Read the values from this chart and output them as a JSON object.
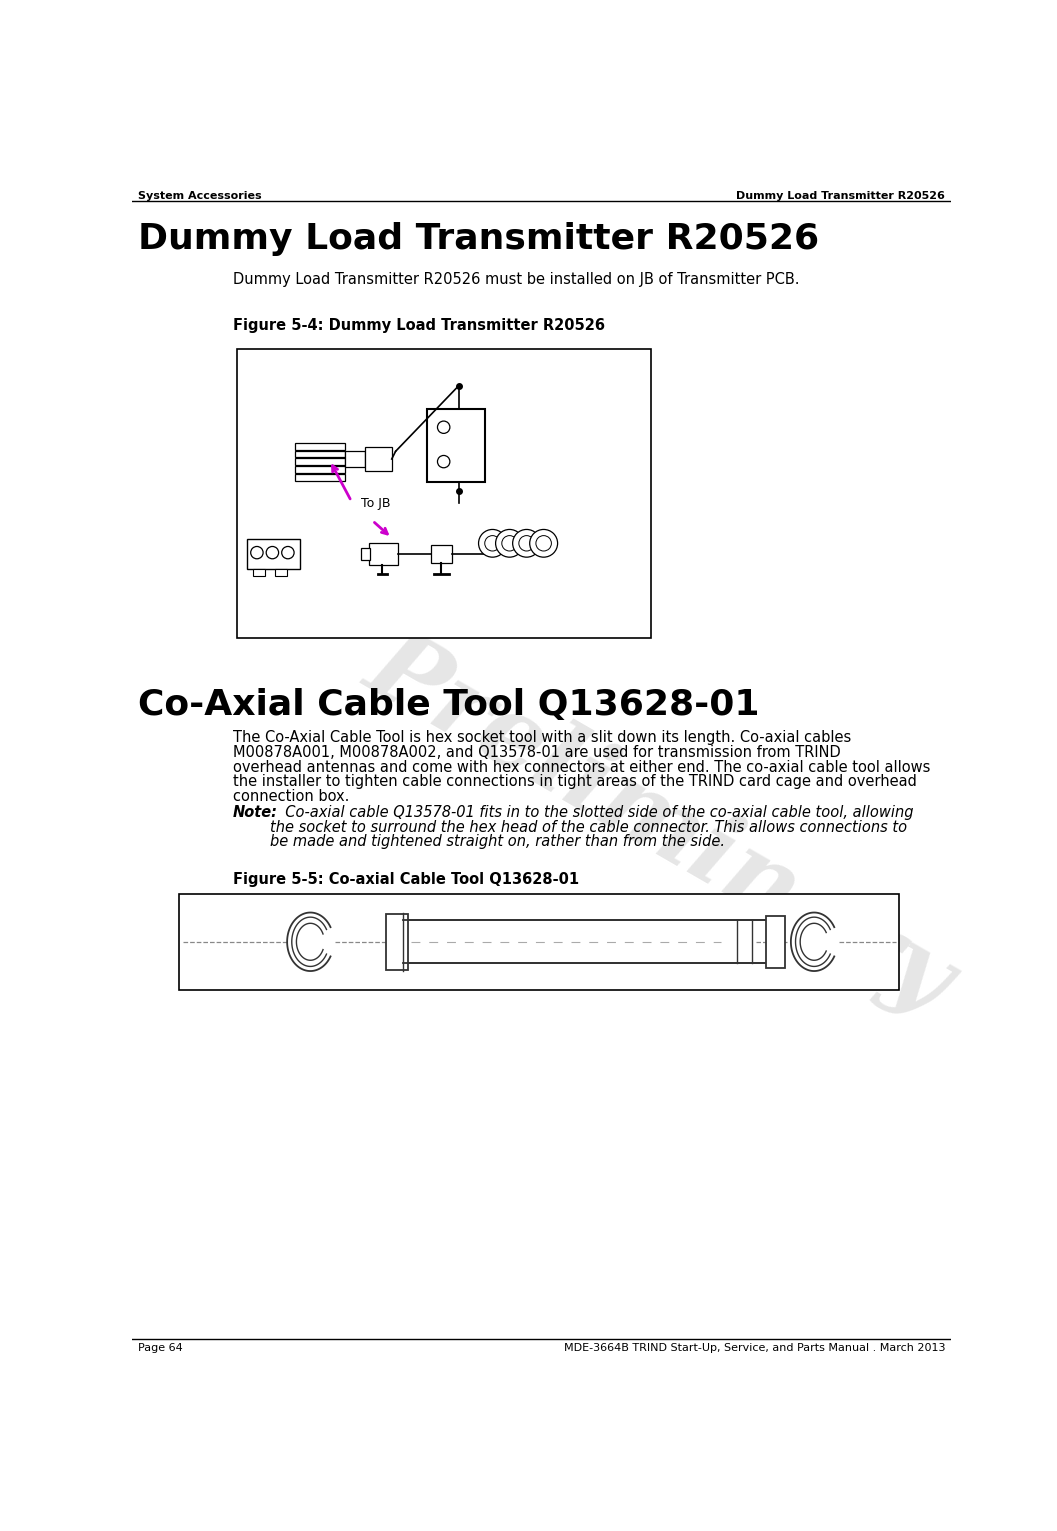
{
  "page_bg": "#ffffff",
  "header_left": "System Accessories",
  "header_right": "Dummy Load Transmitter R20526",
  "footer_left": "Page 64",
  "footer_right": "MDE-3664B TRIND Start-Up, Service, and Parts Manual . March 2013",
  "main_title": "Dummy Load Transmitter R20526",
  "body_text1": "Dummy Load Transmitter R20526 must be installed on JB of Transmitter PCB.",
  "fig1_caption": "Figure 5-4: Dummy Load Transmitter R20526",
  "fig1_note": "To JB",
  "section2_title": "Co-Axial Cable Tool Q13628-01",
  "body_text2_line1": "The Co-Axial Cable Tool is hex socket tool with a slit down its length. Co-axial cables",
  "body_text2_line2": "M00878A001, M00878A002, and Q13578-01 are used for transmission from TRIND",
  "body_text2_line3": "overhead antennas and come with hex connectors at either end. The co-axial cable tool allows",
  "body_text2_line4": "the installer to tighten cable connections in tight areas of the TRIND card cage and overhead",
  "body_text2_line5": "connection box.",
  "note_label": "Note:",
  "note_line1": "  Co-axial cable Q13578-01 fits in to the slotted side of the co-axial cable tool, allowing",
  "note_line2": "        the socket to surround the hex head of the cable connector. This allows connections to",
  "note_line3": "        be made and tightened straight on, rather than from the side.",
  "fig2_caption": "Figure 5-5: Co-axial Cable Tool Q13628-01",
  "watermark": "Preliminary",
  "arrow_color": "#cc00cc",
  "text_color": "#000000",
  "line_color": "#000000",
  "gray_line": "#888888",
  "dark_gray": "#444444"
}
